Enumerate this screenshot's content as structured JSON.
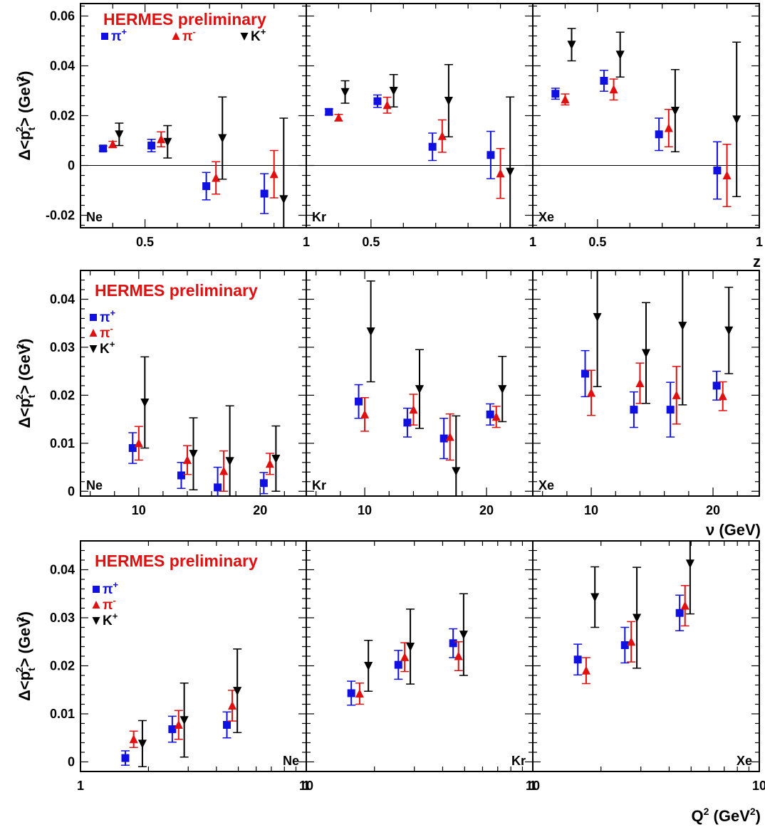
{
  "chart_data": [
    {
      "type": "scatter",
      "row": "z",
      "x_scale": "linear",
      "xlim": [
        0.3,
        1.0
      ],
      "ylim": [
        -0.025,
        0.065
      ],
      "yticks": [
        -0.02,
        0,
        0.02,
        0.04,
        0.06
      ],
      "ytick_labels": [
        "-0.02",
        "0",
        "0.02",
        "0.04",
        "0.06"
      ],
      "xticks": [
        0.5,
        1
      ],
      "xtick_labels": [
        "0.5",
        "1"
      ],
      "xlabel": "z",
      "ylabel_main": "Δ<p",
      "ylabel_sub": "t",
      "ylabel_sup": "2",
      "ylabel_rest": "> (GeV",
      "ylabel_unit_sup": "2",
      "ylabel_end": ")",
      "annotation": "HERMES preliminary",
      "legend": [
        {
          "symbol": "square",
          "main": "π",
          "sup": "+",
          "color": "#1010e0"
        },
        {
          "symbol": "triangle-up",
          "main": "π",
          "sup": "-",
          "color": "#e01010"
        },
        {
          "symbol": "triangle-down",
          "main": "K",
          "sup": "+",
          "color": "#000000"
        }
      ],
      "panels": [
        {
          "target": "Ne",
          "series": [
            {
              "name": "π+",
              "x": [
                0.37,
                0.52,
                0.69,
                0.87
              ],
              "y": [
                0.0068,
                0.008,
                -0.0083,
                -0.0113
              ],
              "err": [
                0.001,
                0.0025,
                0.0055,
                0.008
              ]
            },
            {
              "name": "π-",
              "x": [
                0.4,
                0.55,
                0.72,
                0.9
              ],
              "y": [
                0.0085,
                0.0105,
                -0.005,
                -0.0035
              ],
              "err": [
                0.0012,
                0.003,
                0.0065,
                0.0095
              ]
            },
            {
              "name": "K+",
              "x": [
                0.42,
                0.57,
                0.74,
                0.93
              ],
              "y": [
                0.0125,
                0.0095,
                0.011,
                -0.0135
              ],
              "err": [
                0.0045,
                0.0065,
                0.0165,
                0.0325
              ]
            }
          ]
        },
        {
          "target": "Kr",
          "series": [
            {
              "name": "π+",
              "x": [
                0.37,
                0.52,
                0.69,
                0.87
              ],
              "y": [
                0.0215,
                0.0258,
                0.0075,
                0.0042
              ],
              "err": [
                0.0012,
                0.0025,
                0.0055,
                0.0095
              ]
            },
            {
              "name": "π-",
              "x": [
                0.4,
                0.55,
                0.72,
                0.9
              ],
              "y": [
                0.0192,
                0.0242,
                0.0118,
                -0.0032
              ],
              "err": [
                0.0013,
                0.0032,
                0.0065,
                0.01
              ]
            },
            {
              "name": "K+",
              "x": [
                0.42,
                0.57,
                0.74,
                0.93
              ],
              "y": [
                0.0295,
                0.03,
                0.026,
                -0.0025
              ],
              "err": [
                0.0045,
                0.0065,
                0.0145,
                0.03
              ]
            }
          ]
        },
        {
          "target": "Xe",
          "series": [
            {
              "name": "π+",
              "x": [
                0.37,
                0.52,
                0.69,
                0.87
              ],
              "y": [
                0.0288,
                0.034,
                0.0125,
                -0.002
              ],
              "err": [
                0.0022,
                0.0042,
                0.0065,
                0.0115
              ]
            },
            {
              "name": "π-",
              "x": [
                0.4,
                0.55,
                0.72,
                0.9
              ],
              "y": [
                0.0265,
                0.0305,
                0.015,
                -0.004
              ],
              "err": [
                0.0022,
                0.0042,
                0.0075,
                0.0125
              ]
            },
            {
              "name": "K+",
              "x": [
                0.42,
                0.57,
                0.74,
                0.93
              ],
              "y": [
                0.0485,
                0.0445,
                0.022,
                0.0185
              ],
              "err": [
                0.0065,
                0.009,
                0.0165,
                0.031
              ]
            }
          ]
        }
      ]
    },
    {
      "type": "scatter",
      "row": "nu",
      "x_scale": "linear",
      "xlim": [
        5.2,
        23.8
      ],
      "ylim": [
        -0.001,
        0.046
      ],
      "yticks": [
        0,
        0.01,
        0.02,
        0.03,
        0.04
      ],
      "ytick_labels": [
        "0",
        "0.01",
        "0.02",
        "0.03",
        "0.04"
      ],
      "xticks": [
        10,
        20
      ],
      "xtick_labels": [
        "10",
        "20"
      ],
      "xlabel": "ν (GeV)",
      "ylabel_main": "Δ<p",
      "ylabel_sub": "t",
      "ylabel_sup": "2",
      "ylabel_rest": "> (GeV",
      "ylabel_unit_sup": "2",
      "ylabel_end": ")",
      "annotation": "HERMES preliminary",
      "legend": [
        {
          "symbol": "square",
          "main": "π",
          "sup": "+",
          "color": "#1010e0"
        },
        {
          "symbol": "triangle-up",
          "main": "π",
          "sup": "-",
          "color": "#e01010"
        },
        {
          "symbol": "triangle-down",
          "main": "K",
          "sup": "+",
          "color": "#000000"
        }
      ],
      "panels": [
        {
          "target": "Ne",
          "series": [
            {
              "name": "π+",
              "x": [
                9.5,
                13.5,
                16.5,
                20.3
              ],
              "y": [
                0.009,
                0.0033,
                0.0008,
                0.0017
              ],
              "err": [
                0.0032,
                0.0027,
                0.0042,
                0.0022
              ]
            },
            {
              "name": "π-",
              "x": [
                10.0,
                14.0,
                17.0,
                20.8
              ],
              "y": [
                0.01,
                0.0065,
                0.0042,
                0.0057
              ],
              "err": [
                0.0035,
                0.003,
                0.0042,
                0.0022
              ]
            },
            {
              "name": "K+",
              "x": [
                10.5,
                14.5,
                17.5,
                21.3
              ],
              "y": [
                0.0185,
                0.0078,
                0.0063,
                0.0068
              ],
              "err": [
                0.0095,
                0.0075,
                0.0115,
                0.0068
              ]
            }
          ]
        },
        {
          "target": "Kr",
          "series": [
            {
              "name": "π+",
              "x": [
                9.5,
                13.5,
                16.5,
                20.3
              ],
              "y": [
                0.0187,
                0.0143,
                0.011,
                0.016
              ],
              "err": [
                0.0035,
                0.003,
                0.0042,
                0.0022
              ]
            },
            {
              "name": "π-",
              "x": [
                10.0,
                14.0,
                17.0,
                20.8
              ],
              "y": [
                0.016,
                0.017,
                0.0113,
                0.0155
              ],
              "err": [
                0.0035,
                0.0032,
                0.0048,
                0.0022
              ]
            },
            {
              "name": "K+",
              "x": [
                10.5,
                14.5,
                17.5,
                21.3
              ],
              "y": [
                0.0333,
                0.0213,
                0.0042,
                0.0213
              ],
              "err": [
                0.0105,
                0.0082,
                0.0115,
                0.0068
              ]
            }
          ]
        },
        {
          "target": "Xe",
          "series": [
            {
              "name": "π+",
              "x": [
                9.5,
                13.5,
                16.5,
                20.3
              ],
              "y": [
                0.0245,
                0.017,
                0.017,
                0.022
              ],
              "err": [
                0.0048,
                0.0037,
                0.0057,
                0.003
              ]
            },
            {
              "name": "π-",
              "x": [
                10.0,
                14.0,
                17.0,
                20.8
              ],
              "y": [
                0.0205,
                0.0225,
                0.02,
                0.0198
              ],
              "err": [
                0.0047,
                0.0042,
                0.006,
                0.003
              ]
            },
            {
              "name": "K+",
              "x": [
                10.5,
                14.5,
                17.5,
                21.3
              ],
              "y": [
                0.0363,
                0.0288,
                0.0345,
                0.0335
              ],
              "err": [
                0.0145,
                0.0105,
                0.0165,
                0.009
              ]
            }
          ]
        }
      ]
    },
    {
      "type": "scatter",
      "row": "Q2",
      "x_scale": "log",
      "xlim": [
        1,
        10
      ],
      "ylim": [
        -0.002,
        0.046
      ],
      "yticks": [
        0,
        0.01,
        0.02,
        0.03,
        0.04
      ],
      "ytick_labels": [
        "0",
        "0.01",
        "0.02",
        "0.03",
        "0.04"
      ],
      "xticks": [
        1,
        10
      ],
      "xtick_labels": [
        "1",
        "10"
      ],
      "xlabel_main": "Q",
      "xlabel_sup": "2",
      "xlabel_rest": " (GeV",
      "xlabel_unit_sup": "2",
      "xlabel_end": ")",
      "ylabel_main": "Δ<p",
      "ylabel_sub": "t",
      "ylabel_sup": "2",
      "ylabel_rest": "> (GeV",
      "ylabel_unit_sup": "2",
      "ylabel_end": ")",
      "annotation": "HERMES preliminary",
      "legend": [
        {
          "symbol": "square",
          "main": "π",
          "sup": "+",
          "color": "#1010e0"
        },
        {
          "symbol": "triangle-up",
          "main": "π",
          "sup": "-",
          "color": "#e01010"
        },
        {
          "symbol": "triangle-down",
          "main": "K",
          "sup": "+",
          "color": "#000000"
        }
      ],
      "panels": [
        {
          "target": "Ne",
          "series": [
            {
              "name": "π+",
              "x": [
                1.58,
                2.55,
                4.45
              ],
              "y": [
                0.0008,
                0.0068,
                0.0077
              ],
              "err": [
                0.0015,
                0.0027,
                0.0027
              ]
            },
            {
              "name": "π-",
              "x": [
                1.72,
                2.72,
                4.7
              ],
              "y": [
                0.0047,
                0.0077,
                0.0117
              ],
              "err": [
                0.0017,
                0.003,
                0.0032
              ]
            },
            {
              "name": "K+",
              "x": [
                1.88,
                2.88,
                4.95
              ],
              "y": [
                0.0038,
                0.0087,
                0.0148
              ],
              "err": [
                0.0048,
                0.0077,
                0.0087
              ]
            }
          ]
        },
        {
          "target": "Kr",
          "series": [
            {
              "name": "π+",
              "x": [
                1.58,
                2.55,
                4.45
              ],
              "y": [
                0.0143,
                0.0202,
                0.0247
              ],
              "err": [
                0.0025,
                0.003,
                0.003
              ]
            },
            {
              "name": "π-",
              "x": [
                1.72,
                2.72,
                4.7
              ],
              "y": [
                0.0142,
                0.0218,
                0.022
              ],
              "err": [
                0.0022,
                0.003,
                0.003
              ]
            },
            {
              "name": "K+",
              "x": [
                1.88,
                2.88,
                4.95
              ],
              "y": [
                0.02,
                0.024,
                0.0265
              ],
              "err": [
                0.0053,
                0.0078,
                0.0085
              ]
            }
          ]
        },
        {
          "target": "Xe",
          "series": [
            {
              "name": "π+",
              "x": [
                1.58,
                2.55,
                4.45
              ],
              "y": [
                0.0213,
                0.0243,
                0.031
              ],
              "err": [
                0.0032,
                0.0037,
                0.0037
              ]
            },
            {
              "name": "π-",
              "x": [
                1.72,
                2.72,
                4.7
              ],
              "y": [
                0.019,
                0.025,
                0.0325
              ],
              "err": [
                0.0027,
                0.0042,
                0.0042
              ]
            },
            {
              "name": "K+",
              "x": [
                1.88,
                2.88,
                4.95
              ],
              "y": [
                0.0343,
                0.03,
                0.0413
              ],
              "err": [
                0.0063,
                0.0105,
                0.0105
              ]
            }
          ]
        }
      ]
    }
  ]
}
